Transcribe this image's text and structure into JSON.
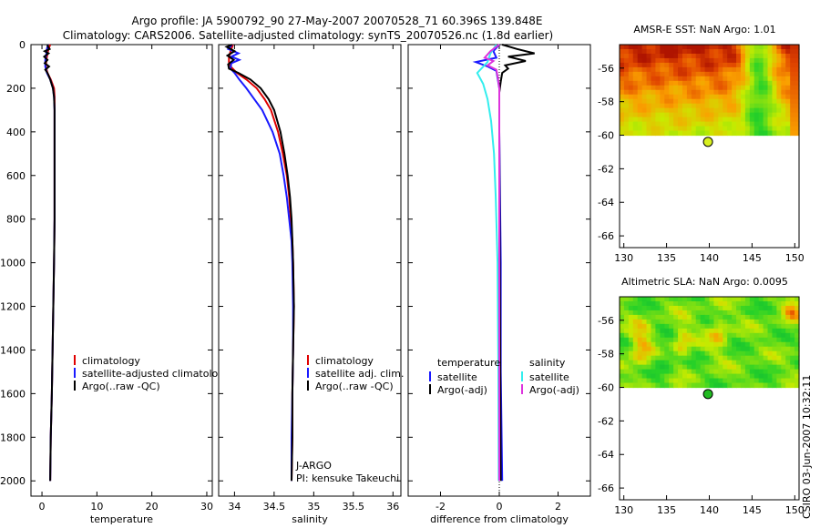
{
  "title": {
    "line1": "Argo profile: JA 5900792_90 27-May-2007 20070528_71 60.396S 139.848E",
    "line2": "Climatology: CARS2006. Satellite-adjusted climatology: synTS_20070526.nc (1.8d earlier)"
  },
  "credit": "CSIRO 03-Jun-2007 10:32:11",
  "colors": {
    "climatology": "#e00000",
    "satellite": "#1a1aff",
    "argo": "#000000",
    "sal_satellite": "#33eeee",
    "sal_argo": "#dd33dd"
  },
  "chart_data": [
    {
      "id": "temperature",
      "type": "line",
      "xlabel": "temperature",
      "ylabel": "",
      "xlim": [
        -2,
        31
      ],
      "ylim": [
        0,
        2070
      ],
      "y_inverted": true,
      "xticks": [
        0,
        10,
        20,
        30
      ],
      "yticks": [
        0,
        200,
        400,
        600,
        800,
        1000,
        1200,
        1400,
        1600,
        1800,
        2000
      ],
      "legend": [
        {
          "label": "climatology",
          "color": "#e00000"
        },
        {
          "label": "satellite-adjusted climatology",
          "color": "#1a1aff"
        },
        {
          "label": "Argo(..raw -QC)",
          "color": "#000000"
        }
      ],
      "series": [
        {
          "name": "climatology",
          "color": "#e00000",
          "points": [
            [
              1.5,
              0
            ],
            [
              1.2,
              20
            ],
            [
              1.0,
              40
            ],
            [
              0.8,
              70
            ],
            [
              0.7,
              100
            ],
            [
              1.0,
              130
            ],
            [
              1.6,
              160
            ],
            [
              2.2,
              200
            ],
            [
              2.3,
              240
            ],
            [
              2.3,
              300
            ],
            [
              2.3,
              400
            ],
            [
              2.3,
              600
            ],
            [
              2.3,
              800
            ],
            [
              2.2,
              1000
            ],
            [
              2.0,
              1300
            ],
            [
              1.8,
              1600
            ],
            [
              1.6,
              1800
            ],
            [
              1.5,
              2000
            ]
          ]
        },
        {
          "name": "satellite-adjusted climatology",
          "color": "#1a1aff",
          "points": [
            [
              1.1,
              0
            ],
            [
              0.9,
              20
            ],
            [
              0.8,
              40
            ],
            [
              0.6,
              70
            ],
            [
              0.6,
              100
            ],
            [
              0.9,
              130
            ],
            [
              1.5,
              160
            ],
            [
              2.0,
              200
            ],
            [
              2.2,
              240
            ],
            [
              2.3,
              300
            ],
            [
              2.3,
              400
            ],
            [
              2.3,
              600
            ],
            [
              2.3,
              800
            ],
            [
              2.2,
              1000
            ],
            [
              2.0,
              1300
            ],
            [
              1.8,
              1600
            ],
            [
              1.6,
              1800
            ],
            [
              1.5,
              2000
            ]
          ]
        },
        {
          "name": "Argo(..raw -QC)",
          "color": "#000000",
          "points": [
            [
              1.0,
              0
            ],
            [
              1.1,
              10
            ],
            [
              1.4,
              20
            ],
            [
              0.5,
              30
            ],
            [
              1.2,
              40
            ],
            [
              0.4,
              55
            ],
            [
              1.0,
              70
            ],
            [
              0.5,
              85
            ],
            [
              1.3,
              100
            ],
            [
              0.6,
              115
            ],
            [
              1.0,
              130
            ],
            [
              1.5,
              160
            ],
            [
              2.0,
              200
            ],
            [
              2.2,
              240
            ],
            [
              2.3,
              300
            ],
            [
              2.3,
              400
            ],
            [
              2.3,
              600
            ],
            [
              2.3,
              800
            ],
            [
              2.2,
              1000
            ],
            [
              2.0,
              1300
            ],
            [
              1.8,
              1600
            ],
            [
              1.6,
              1800
            ],
            [
              1.5,
              2000
            ]
          ]
        }
      ]
    },
    {
      "id": "salinity",
      "type": "line",
      "xlabel": "salinity",
      "xlim": [
        33.8,
        36.1
      ],
      "ylim": [
        0,
        2070
      ],
      "y_inverted": true,
      "xticks": [
        34,
        34.5,
        35,
        35.5,
        36
      ],
      "yticks": [
        0,
        200,
        400,
        600,
        800,
        1000,
        1200,
        1400,
        1600,
        1800,
        2000
      ],
      "legend": [
        {
          "label": "climatology",
          "color": "#e00000"
        },
        {
          "label": "satellite adj. clim.",
          "color": "#1a1aff"
        },
        {
          "label": "Argo(..raw -QC)",
          "color": "#000000"
        }
      ],
      "annotation": [
        "J-ARGO",
        "PI: kensuke Takeuchi"
      ],
      "series": [
        {
          "name": "climatology",
          "color": "#e00000",
          "points": [
            [
              33.98,
              0
            ],
            [
              33.95,
              30
            ],
            [
              33.93,
              60
            ],
            [
              33.93,
              80
            ],
            [
              33.95,
              100
            ],
            [
              34.03,
              130
            ],
            [
              34.15,
              160
            ],
            [
              34.28,
              200
            ],
            [
              34.38,
              250
            ],
            [
              34.46,
              300
            ],
            [
              34.55,
              400
            ],
            [
              34.61,
              500
            ],
            [
              34.66,
              600
            ],
            [
              34.69,
              700
            ],
            [
              34.71,
              800
            ],
            [
              34.73,
              900
            ],
            [
              34.74,
              1000
            ],
            [
              34.75,
              1200
            ],
            [
              34.74,
              1400
            ],
            [
              34.73,
              1600
            ],
            [
              34.73,
              1800
            ],
            [
              34.72,
              2000
            ]
          ]
        },
        {
          "name": "satellite adj. clim.",
          "color": "#1a1aff",
          "points": [
            [
              33.97,
              0
            ],
            [
              33.92,
              20
            ],
            [
              34.05,
              40
            ],
            [
              33.96,
              55
            ],
            [
              34.06,
              70
            ],
            [
              33.96,
              85
            ],
            [
              33.95,
              110
            ],
            [
              34.0,
              130
            ],
            [
              34.06,
              160
            ],
            [
              34.15,
              200
            ],
            [
              34.25,
              250
            ],
            [
              34.35,
              300
            ],
            [
              34.48,
              400
            ],
            [
              34.57,
              500
            ],
            [
              34.62,
              600
            ],
            [
              34.66,
              700
            ],
            [
              34.69,
              800
            ],
            [
              34.72,
              900
            ],
            [
              34.73,
              1000
            ],
            [
              34.74,
              1200
            ],
            [
              34.74,
              1400
            ],
            [
              34.73,
              1600
            ],
            [
              34.72,
              1800
            ],
            [
              34.72,
              2000
            ]
          ]
        },
        {
          "name": "Argo(..raw -QC)",
          "color": "#000000",
          "points": [
            [
              33.97,
              0
            ],
            [
              33.9,
              10
            ],
            [
              34.0,
              30
            ],
            [
              33.91,
              50
            ],
            [
              33.99,
              70
            ],
            [
              33.92,
              90
            ],
            [
              33.93,
              110
            ],
            [
              34.05,
              130
            ],
            [
              34.2,
              160
            ],
            [
              34.33,
              200
            ],
            [
              34.43,
              250
            ],
            [
              34.5,
              300
            ],
            [
              34.58,
              400
            ],
            [
              34.63,
              500
            ],
            [
              34.67,
              600
            ],
            [
              34.7,
              700
            ],
            [
              34.72,
              800
            ],
            [
              34.73,
              900
            ],
            [
              34.74,
              1000
            ],
            [
              34.75,
              1200
            ],
            [
              34.74,
              1400
            ],
            [
              34.73,
              1600
            ],
            [
              34.73,
              1800
            ],
            [
              34.72,
              2000
            ]
          ]
        }
      ]
    },
    {
      "id": "difference",
      "type": "line",
      "xlabel": "difference from climatology",
      "xlim": [
        -3.1,
        3.1
      ],
      "ylim": [
        0,
        2070
      ],
      "y_inverted": true,
      "xticks": [
        -2,
        0,
        2
      ],
      "yticks": [
        0,
        200,
        400,
        600,
        800,
        1000,
        1200,
        1400,
        1600,
        1800,
        2000
      ],
      "legend_temperature": {
        "header": "temperature",
        "entries": [
          {
            "label": "satellite",
            "color": "#1a1aff"
          },
          {
            "label": "Argo(-adj)",
            "color": "#000000"
          }
        ]
      },
      "legend_salinity": {
        "header": "salinity",
        "entries": [
          {
            "label": "satellite",
            "color": "#33eeee"
          },
          {
            "label": "Argo(-adj)",
            "color": "#dd33dd"
          }
        ]
      },
      "series": [
        {
          "name": "temperature satellite",
          "color": "#1a1aff",
          "points": [
            [
              0.0,
              0
            ],
            [
              -0.2,
              30
            ],
            [
              -0.1,
              60
            ],
            [
              -0.8,
              80
            ],
            [
              -0.4,
              100
            ],
            [
              -0.1,
              120
            ],
            [
              -0.05,
              160
            ],
            [
              0.0,
              200
            ],
            [
              0.0,
              400
            ],
            [
              0.05,
              1000
            ],
            [
              0.05,
              1500
            ],
            [
              0.1,
              2000
            ]
          ]
        },
        {
          "name": "temperature Argo(-adj)",
          "color": "#000000",
          "points": [
            [
              0.1,
              0
            ],
            [
              0.6,
              20
            ],
            [
              1.2,
              40
            ],
            [
              0.3,
              55
            ],
            [
              0.9,
              75
            ],
            [
              0.2,
              95
            ],
            [
              0.3,
              110
            ],
            [
              0.1,
              130
            ],
            [
              0.05,
              170
            ],
            [
              0.0,
              220
            ],
            [
              0.0,
              400
            ],
            [
              0.02,
              1000
            ],
            [
              0.05,
              2000
            ]
          ]
        },
        {
          "name": "salinity satellite",
          "color": "#33eeee",
          "points": [
            [
              -0.1,
              0
            ],
            [
              -0.3,
              40
            ],
            [
              -0.4,
              80
            ],
            [
              -0.75,
              130
            ],
            [
              -0.55,
              180
            ],
            [
              -0.4,
              250
            ],
            [
              -0.28,
              350
            ],
            [
              -0.18,
              500
            ],
            [
              -0.12,
              700
            ],
            [
              -0.06,
              1000
            ],
            [
              -0.03,
              1500
            ],
            [
              -0.02,
              2000
            ]
          ]
        },
        {
          "name": "salinity Argo(-adj)",
          "color": "#dd33dd",
          "points": [
            [
              0.0,
              0
            ],
            [
              -0.3,
              30
            ],
            [
              -0.5,
              60
            ],
            [
              -0.2,
              75
            ],
            [
              -0.4,
              95
            ],
            [
              -0.1,
              115
            ],
            [
              -0.05,
              150
            ],
            [
              0.0,
              200
            ],
            [
              0.0,
              400
            ],
            [
              0.0,
              1000
            ],
            [
              0.0,
              2000
            ]
          ]
        }
      ]
    },
    {
      "id": "amsr-sst",
      "type": "heatmap",
      "title": "AMSR-E SST: NaN Argo: 1.01",
      "xlim": [
        129.5,
        150.5
      ],
      "ylim": [
        -66.7,
        -54.6
      ],
      "xticks": [
        130,
        135,
        140,
        145,
        150
      ],
      "yticks": [
        -56,
        -58,
        -60,
        -62,
        -64,
        -66
      ],
      "data_extent_lat": [
        -60,
        -54.6
      ],
      "argo_position": [
        139.848,
        -60.396
      ],
      "marker_color": "#d8f020"
    },
    {
      "id": "altimetric-sla",
      "type": "heatmap",
      "title": "Altimetric SLA: NaN Argo: 0.0095",
      "xlim": [
        129.5,
        150.5
      ],
      "ylim": [
        -66.7,
        -54.6
      ],
      "xticks": [
        130,
        135,
        140,
        145,
        150
      ],
      "yticks": [
        -56,
        -58,
        -60,
        -62,
        -64,
        -66
      ],
      "data_extent_lat": [
        -60,
        -54.6
      ],
      "argo_position": [
        139.848,
        -60.396
      ],
      "marker_color": "#22bb22"
    }
  ]
}
